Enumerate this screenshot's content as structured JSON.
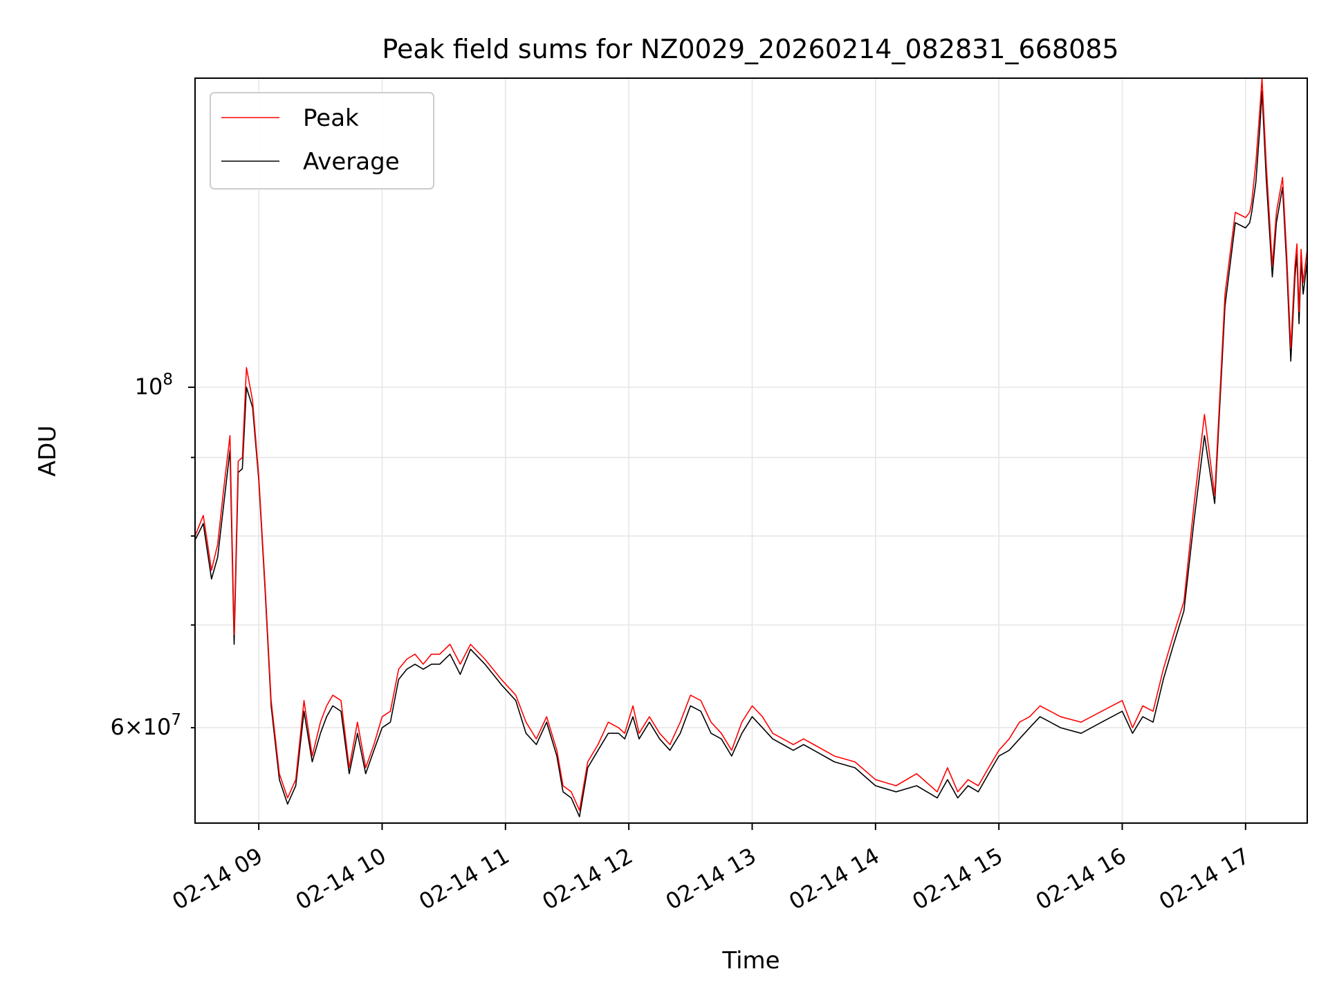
{
  "chart_data": {
    "type": "line",
    "title": "Peak field sums for NZ0029_20260214_082831_668085",
    "xlabel": "Time",
    "ylabel": "ADU",
    "y_scale": "log",
    "grid": true,
    "legend_position": "top-left",
    "x_ticks": [
      "02-14 09",
      "02-14 10",
      "02-14 11",
      "02-14 12",
      "02-14 13",
      "02-14 14",
      "02-14 15",
      "02-14 16",
      "02-14 17"
    ],
    "y_ticks_major": [
      {
        "value": 100000000,
        "base": "10",
        "exponent": "8"
      }
    ],
    "y_ticks_minor_labeled": [
      {
        "value": 60000000,
        "mantissa": "6",
        "base": "10",
        "exponent": "7"
      }
    ],
    "x_range": [
      "2026-02-14 08:29",
      "2026-02-14 17:30"
    ],
    "y_range": [
      52000000,
      159000000
    ],
    "series": [
      {
        "name": "Peak",
        "color": "#ff0000"
      },
      {
        "name": "Average",
        "color": "#000000"
      }
    ],
    "x": [
      "08:29",
      "08:33",
      "08:37",
      "08:40",
      "08:43",
      "08:46",
      "08:48",
      "08:50",
      "08:52",
      "08:54",
      "08:57",
      "09:00",
      "09:03",
      "09:06",
      "09:10",
      "09:14",
      "09:18",
      "09:22",
      "09:26",
      "09:30",
      "09:33",
      "09:36",
      "09:40",
      "09:44",
      "09:48",
      "09:52",
      "09:56",
      "10:00",
      "10:04",
      "10:08",
      "10:12",
      "10:16",
      "10:20",
      "10:24",
      "10:28",
      "10:33",
      "10:38",
      "10:43",
      "10:50",
      "10:58",
      "11:05",
      "11:10",
      "11:15",
      "11:20",
      "11:25",
      "11:28",
      "11:32",
      "11:36",
      "11:40",
      "11:45",
      "11:50",
      "11:55",
      "11:58",
      "12:02",
      "12:05",
      "12:10",
      "12:15",
      "12:20",
      "12:25",
      "12:30",
      "12:35",
      "12:40",
      "12:45",
      "12:50",
      "12:55",
      "13:00",
      "13:05",
      "13:10",
      "13:15",
      "13:20",
      "13:25",
      "13:30",
      "13:40",
      "13:50",
      "14:00",
      "14:10",
      "14:20",
      "14:30",
      "14:35",
      "14:40",
      "14:45",
      "14:50",
      "14:55",
      "15:00",
      "15:05",
      "15:10",
      "15:15",
      "15:20",
      "15:25",
      "15:30",
      "15:40",
      "15:50",
      "16:00",
      "16:05",
      "16:10",
      "16:15",
      "16:20",
      "16:25",
      "16:30",
      "16:35",
      "16:40",
      "16:45",
      "16:50",
      "16:55",
      "17:00",
      "17:02",
      "17:03",
      "17:05",
      "17:07",
      "17:08",
      "17:10",
      "17:13",
      "17:15",
      "17:18",
      "17:20",
      "17:22",
      "17:24",
      "17:25",
      "17:26",
      "17:27",
      "17:28",
      "17:30"
    ],
    "average": [
      79500000,
      81500000,
      75000000,
      77500000,
      84000000,
      91000000,
      68000000,
      88000000,
      88500000,
      100000000,
      97000000,
      87000000,
      74000000,
      62000000,
      55500000,
      53500000,
      55000000,
      61500000,
      57000000,
      59500000,
      61000000,
      62000000,
      61500000,
      56000000,
      59500000,
      56000000,
      58000000,
      60000000,
      60500000,
      64500000,
      65500000,
      66000000,
      65500000,
      66000000,
      66000000,
      67000000,
      65000000,
      67500000,
      66000000,
      64000000,
      62500000,
      59500000,
      58500000,
      60500000,
      57500000,
      54500000,
      54000000,
      52500000,
      56500000,
      58000000,
      59500000,
      59500000,
      59000000,
      61000000,
      59000000,
      60500000,
      59000000,
      58000000,
      59500000,
      62000000,
      61500000,
      59500000,
      59000000,
      57500000,
      59500000,
      61000000,
      60000000,
      59000000,
      58500000,
      58000000,
      58500000,
      58000000,
      57000000,
      56500000,
      55000000,
      54500000,
      55000000,
      54000000,
      55500000,
      54000000,
      55000000,
      54500000,
      56000000,
      57500000,
      58000000,
      59000000,
      60000000,
      61000000,
      60500000,
      60000000,
      59500000,
      60500000,
      61500000,
      59500000,
      61000000,
      60500000,
      64500000,
      68000000,
      71500000,
      82000000,
      93000000,
      84000000,
      113000000,
      128000000,
      127000000,
      128000000,
      130000000,
      136000000,
      148000000,
      156000000,
      137000000,
      118000000,
      128000000,
      135000000,
      120000000,
      104000000,
      118000000,
      122000000,
      110000000,
      121000000,
      115000000,
      121000000
    ],
    "peak": [
      80000000,
      82500000,
      76000000,
      79000000,
      86000000,
      93000000,
      69000000,
      89500000,
      90000000,
      103000000,
      98000000,
      87500000,
      74500000,
      62500000,
      56000000,
      54000000,
      55500000,
      62500000,
      57500000,
      60500000,
      62000000,
      63000000,
      62500000,
      56500000,
      60500000,
      56500000,
      58500000,
      61000000,
      61500000,
      65500000,
      66500000,
      67000000,
      66000000,
      67000000,
      67000000,
      68000000,
      66000000,
      68000000,
      66500000,
      64500000,
      63000000,
      60500000,
      59000000,
      61000000,
      58000000,
      55000000,
      54500000,
      53000000,
      57000000,
      58500000,
      60500000,
      60000000,
      59500000,
      62000000,
      59500000,
      61000000,
      59500000,
      58500000,
      60500000,
      63000000,
      62500000,
      60500000,
      59500000,
      58000000,
      60500000,
      62000000,
      61000000,
      59500000,
      59000000,
      58500000,
      59000000,
      58500000,
      57500000,
      57000000,
      55500000,
      55000000,
      56000000,
      54500000,
      56500000,
      54500000,
      55500000,
      55000000,
      56500000,
      58000000,
      59000000,
      60500000,
      61000000,
      62000000,
      61500000,
      61000000,
      60500000,
      61500000,
      62500000,
      60000000,
      62000000,
      61500000,
      65500000,
      69000000,
      72500000,
      84000000,
      96000000,
      85000000,
      115000000,
      130000000,
      129000000,
      130000000,
      132000000,
      140000000,
      152000000,
      159000000,
      140000000,
      120000000,
      130000000,
      137000000,
      122000000,
      106000000,
      120000000,
      124000000,
      112000000,
      123000000,
      117000000,
      123000000
    ]
  }
}
